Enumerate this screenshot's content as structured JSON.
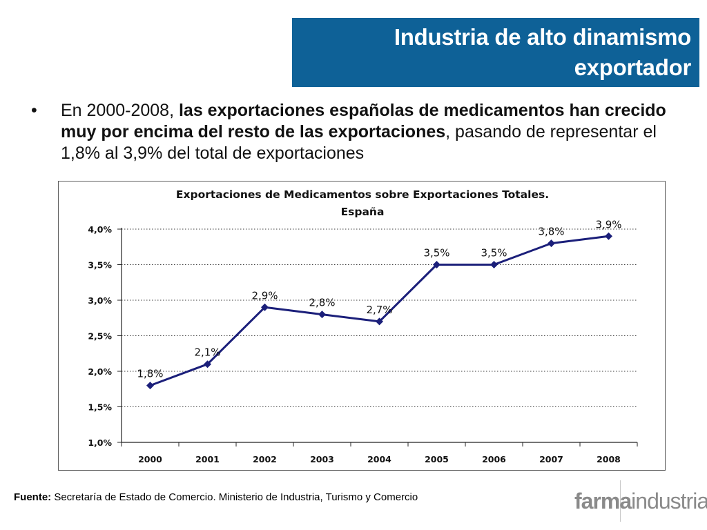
{
  "title": {
    "line1": "Industria de alto dinamismo",
    "line2": "exportador"
  },
  "bullet": {
    "symbol": "•",
    "prefix": "En 2000-2008, ",
    "bold": "las exportaciones españolas de medicamentos han crecido muy por encima del resto de las exportaciones",
    "suffix": ", pasando de representar el 1,8% al 3,9% del total de exportaciones"
  },
  "chart_data": {
    "type": "line",
    "title_line1": "Exportaciones de Medicamentos sobre Exportaciones Totales.",
    "title_line2": "España",
    "categories": [
      "2000",
      "2001",
      "2002",
      "2003",
      "2004",
      "2005",
      "2006",
      "2007",
      "2008"
    ],
    "values": [
      1.8,
      2.1,
      2.9,
      2.8,
      2.7,
      3.5,
      3.5,
      3.8,
      3.9
    ],
    "data_labels": [
      "1,8%",
      "2,1%",
      "2,9%",
      "2,8%",
      "2,7%",
      "3,5%",
      "3,5%",
      "3,8%",
      "3,9%"
    ],
    "ylim": [
      1.0,
      4.0
    ],
    "yticks": [
      1.0,
      1.5,
      2.0,
      2.5,
      3.0,
      3.5,
      4.0
    ],
    "ytick_labels": [
      "1,0%",
      "1,5%",
      "2,0%",
      "2,5%",
      "3,0%",
      "3,5%",
      "4,0%"
    ],
    "xlabel": "",
    "ylabel": "",
    "grid": "horizontal dotted",
    "legend": "none",
    "line_color": "#1b1f7a",
    "marker": "diamond"
  },
  "source": {
    "label": "Fuente:",
    "text": " Secretaría de Estado de Comercio. Ministerio de Industria, Turismo y Comercio"
  },
  "logo": {
    "part1": "farma",
    "part2": "industria"
  },
  "colors": {
    "title_bg": "#0e6197",
    "title_text": "#ffffff",
    "series": "#1b1f7a",
    "logo": "#8a8a8a"
  }
}
